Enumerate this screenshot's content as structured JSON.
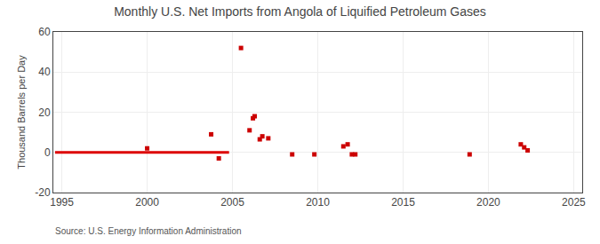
{
  "chart_data": {
    "type": "scatter",
    "title": "Monthly U.S. Net Imports from Angola of Liquified Petroleum Gases",
    "ylabel": "Thousand Barrels per Day",
    "annotations": [
      "Source: U.S. Energy Information Administration"
    ],
    "xlim": [
      1994.5,
      2025.5
    ],
    "ylim": [
      -20,
      60
    ],
    "xticks": [
      1995,
      2000,
      2005,
      2010,
      2015,
      2020,
      2025
    ],
    "yticks": [
      -20,
      0,
      20,
      40,
      60
    ],
    "grid": true,
    "series": [
      {
        "type": "line",
        "color": "#dd0000",
        "line_style": "solid",
        "x": [
          1994.6,
          2004.8
        ],
        "values": [
          0.0,
          0.0
        ]
      },
      {
        "type": "scatter",
        "color": "#cc0000",
        "marker": "square",
        "x": [
          2000.0,
          2003.75,
          2004.2,
          2005.5,
          2006.0,
          2006.2,
          2006.3,
          2006.6,
          2006.75,
          2007.1,
          2008.5,
          2009.8,
          2011.5,
          2011.75,
          2012.0,
          2012.2,
          2018.9,
          2021.9,
          2022.1,
          2022.3
        ],
        "values": [
          2.0,
          9.0,
          -3.0,
          52.0,
          11.0,
          17.0,
          18.0,
          6.5,
          8.0,
          7.0,
          -1.0,
          -1.0,
          3.0,
          4.0,
          -1.0,
          -1.0,
          -1.0,
          4.0,
          2.5,
          1.0
        ]
      }
    ]
  }
}
